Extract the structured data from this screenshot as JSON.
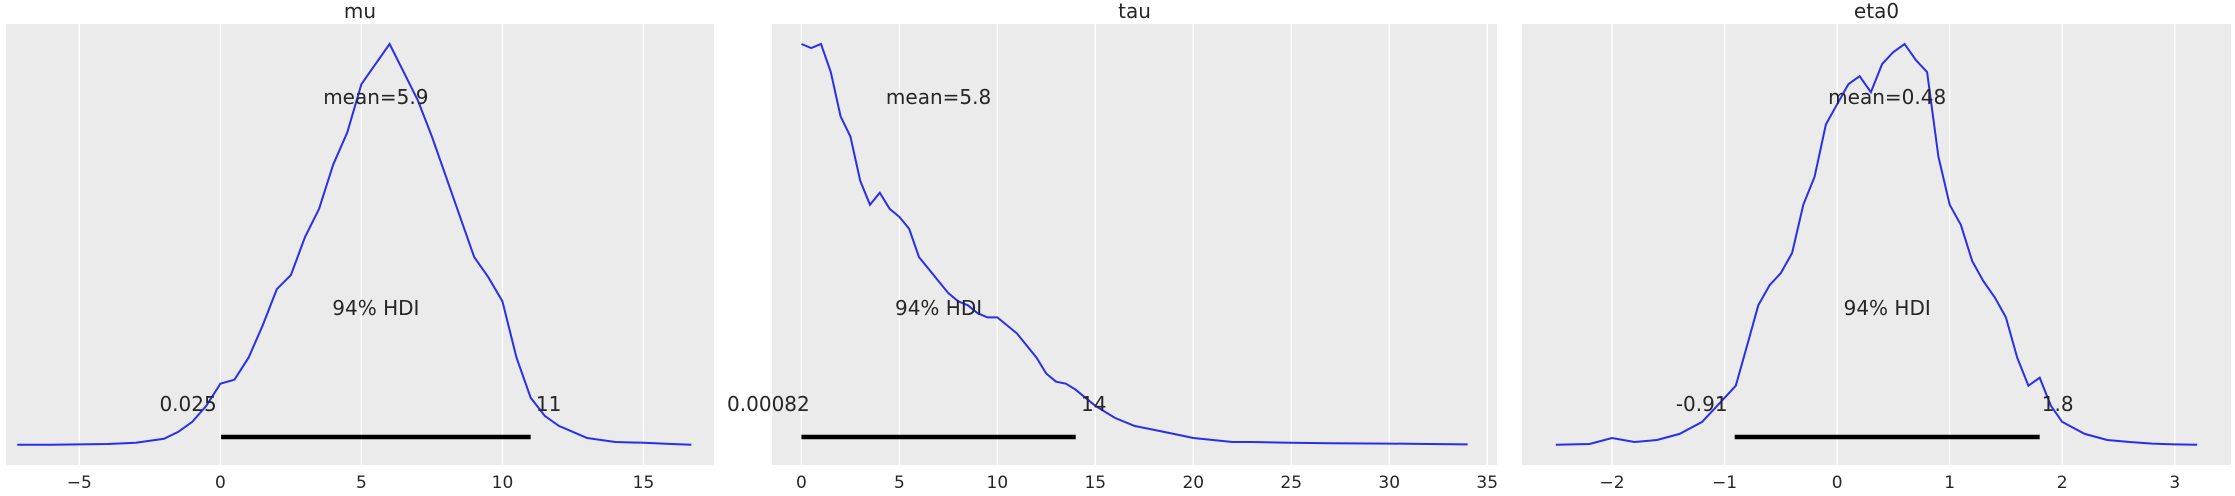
{
  "chart_data": [
    {
      "type": "line",
      "title": "mu",
      "xlim": [
        -7.6,
        17.5
      ],
      "xticks": [
        -5,
        0,
        5,
        10,
        15
      ],
      "xtick_labels": [
        "−5",
        "0",
        "5",
        "10",
        "15"
      ],
      "color": "#2a2eec",
      "mean_label": "mean=5.9",
      "hdi_label": "94% HDI",
      "hdi_low": 0.025,
      "hdi_high": 11,
      "hdi_low_label": "0.025",
      "hdi_high_label": "11",
      "density": {
        "x": [
          -7.2,
          -6.0,
          -5.0,
          -4.0,
          -3.0,
          -2.0,
          -1.5,
          -1.0,
          -0.5,
          0.0,
          0.5,
          1.0,
          1.5,
          2.0,
          2.5,
          3.0,
          3.5,
          4.0,
          4.5,
          5.0,
          5.5,
          6.0,
          6.5,
          7.0,
          7.5,
          8.0,
          8.5,
          9.0,
          9.5,
          10.0,
          10.5,
          11.0,
          11.5,
          12.0,
          12.5,
          13.0,
          14.0,
          15.0,
          16.0,
          16.7
        ],
        "y": [
          0.003,
          0.003,
          0.004,
          0.005,
          0.008,
          0.018,
          0.035,
          0.06,
          0.1,
          0.155,
          0.165,
          0.22,
          0.3,
          0.39,
          0.425,
          0.52,
          0.59,
          0.7,
          0.78,
          0.9,
          0.95,
          1.0,
          0.93,
          0.86,
          0.77,
          0.67,
          0.57,
          0.47,
          0.42,
          0.36,
          0.22,
          0.12,
          0.075,
          0.05,
          0.035,
          0.02,
          0.01,
          0.008,
          0.005,
          0.003
        ]
      }
    },
    {
      "type": "line",
      "title": "tau",
      "xlim": [
        -1.5,
        35.5
      ],
      "xticks": [
        0,
        5,
        10,
        15,
        20,
        25,
        30,
        35
      ],
      "xtick_labels": [
        "0",
        "5",
        "10",
        "15",
        "20",
        "25",
        "30",
        "35"
      ],
      "color": "#2a2eec",
      "mean_label": "mean=5.8",
      "hdi_label": "94% HDI",
      "hdi_low": 0.00082,
      "hdi_high": 14,
      "hdi_low_label": "0.00082",
      "hdi_high_label": "14",
      "density": {
        "x": [
          0.0,
          0.5,
          1.0,
          1.5,
          2.0,
          2.5,
          3.0,
          3.5,
          4.0,
          4.5,
          5.0,
          5.5,
          6.0,
          6.5,
          7.0,
          7.5,
          8.0,
          8.5,
          9.0,
          9.5,
          10.0,
          10.5,
          11.0,
          11.5,
          12.0,
          12.5,
          13.0,
          13.5,
          14.0,
          14.5,
          15.0,
          16.0,
          17.0,
          18.0,
          19.0,
          20.0,
          21.0,
          22.0,
          23.0,
          25.0,
          27.0,
          30.0,
          32.0,
          34.0
        ],
        "y": [
          1.0,
          0.99,
          1.0,
          0.93,
          0.82,
          0.77,
          0.66,
          0.6,
          0.63,
          0.59,
          0.57,
          0.54,
          0.47,
          0.44,
          0.41,
          0.38,
          0.36,
          0.35,
          0.33,
          0.32,
          0.32,
          0.3,
          0.28,
          0.25,
          0.22,
          0.18,
          0.16,
          0.155,
          0.14,
          0.12,
          0.1,
          0.07,
          0.05,
          0.04,
          0.03,
          0.02,
          0.015,
          0.01,
          0.01,
          0.008,
          0.007,
          0.006,
          0.005,
          0.004
        ]
      }
    },
    {
      "type": "line",
      "title": "eta0",
      "xlim": [
        -2.8,
        3.5
      ],
      "xticks": [
        -2,
        -1,
        0,
        1,
        2,
        3
      ],
      "xtick_labels": [
        "−2",
        "−1",
        "0",
        "1",
        "2",
        "3"
      ],
      "color": "#2a2eec",
      "mean_label": "mean=0.48",
      "hdi_label": "94% HDI",
      "hdi_low": -0.91,
      "hdi_high": 1.8,
      "hdi_low_label": "-0.91",
      "hdi_high_label": "1.8",
      "density": {
        "x": [
          -2.5,
          -2.2,
          -2.0,
          -1.8,
          -1.6,
          -1.4,
          -1.2,
          -1.0,
          -0.9,
          -0.8,
          -0.7,
          -0.6,
          -0.5,
          -0.4,
          -0.3,
          -0.2,
          -0.1,
          0.0,
          0.1,
          0.2,
          0.3,
          0.4,
          0.5,
          0.6,
          0.7,
          0.8,
          0.9,
          1.0,
          1.1,
          1.2,
          1.3,
          1.4,
          1.5,
          1.6,
          1.7,
          1.8,
          1.9,
          2.0,
          2.2,
          2.4,
          2.6,
          2.8,
          3.0,
          3.2
        ],
        "y": [
          0.003,
          0.005,
          0.02,
          0.01,
          0.015,
          0.03,
          0.06,
          0.12,
          0.15,
          0.25,
          0.35,
          0.4,
          0.43,
          0.48,
          0.6,
          0.67,
          0.8,
          0.85,
          0.9,
          0.92,
          0.88,
          0.95,
          0.98,
          1.0,
          0.96,
          0.93,
          0.72,
          0.6,
          0.55,
          0.46,
          0.41,
          0.37,
          0.32,
          0.22,
          0.15,
          0.17,
          0.1,
          0.06,
          0.03,
          0.015,
          0.01,
          0.006,
          0.004,
          0.003
        ]
      }
    }
  ]
}
